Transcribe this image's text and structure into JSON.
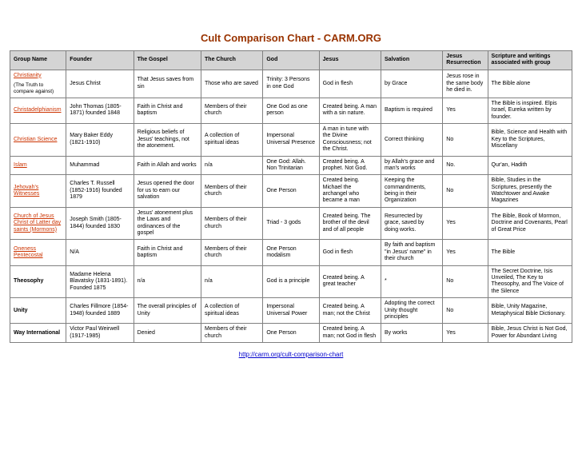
{
  "title": "Cult Comparison Chart - CARM.ORG",
  "footer_url": "http://carm.org/cult-comparison-chart",
  "columns": [
    "Group Name",
    "Founder",
    "The Gospel",
    "The Church",
    "God",
    "Jesus",
    "Salvation",
    "Jesus Resurrection",
    "Scripture and writings associated with group"
  ],
  "rows": [
    {
      "group": "Christianity",
      "group_sub": "(The Truth to compare against)",
      "founder": "Jesus Christ",
      "gospel": "That Jesus saves from sin",
      "church": "Those who are saved",
      "god": "Trinity: 3 Persons in one God",
      "jesus": "God in flesh",
      "salvation": "by Grace",
      "resurrection": "Jesus rose in the same body he died in.",
      "scripture": "The Bible alone"
    },
    {
      "group": "Christadelphianism",
      "group_sub": "",
      "founder": "John Thomas (1805-1871) founded 1848",
      "gospel": "Faith in Christ and baptism",
      "church": "Members of their church",
      "god": "One God as one person",
      "jesus": "Created being. A man with a sin nature.",
      "salvation": "Baptism is required",
      "resurrection": "Yes",
      "scripture": "The Bible is inspired. Elpis Israel, Eureka written by founder."
    },
    {
      "group": "Christian Science",
      "group_sub": "",
      "founder": "Mary Baker Eddy (1821-1910)",
      "gospel": "Religious beliefs of Jesus' teachings, not the atonement.",
      "church": "A collection of spiritual ideas",
      "god": "Impersonal Universal Presence",
      "jesus": "A man in tune with the Divine Consciousness; not the Christ.",
      "salvation": "Correct thinking",
      "resurrection": "No",
      "scripture": "Bible, Science and Health with Key to the Scriptures, Miscellany"
    },
    {
      "group": "Islam",
      "group_sub": "",
      "founder": "Muhammad",
      "gospel": "Faith in Allah and works",
      "church": "n/a",
      "god": "One God: Allah. Non Trinitarian",
      "jesus": "Created being. A prophet. Not God.",
      "salvation": "by Allah's grace and man's works",
      "resurrection": "No.",
      "scripture": "Qur'an, Hadith"
    },
    {
      "group": "Jehovah's Witnesses",
      "group_sub": "",
      "founder": "Charles T. Russell (1852-1916) founded 1879",
      "gospel": "Jesus opened the door for us to earn our salvation",
      "church": "Members of their church",
      "god": "One Person",
      "jesus": "Created being. Michael the archangel who became a man",
      "salvation": "Keeping the commandments, being in their Organization",
      "resurrection": "No",
      "scripture": "Bible, Studies in the Scriptures, presently the Watchtower and Awake Magazines"
    },
    {
      "group": "Church of Jesus Christ of Latter day saints (Mormons)",
      "group_sub": "",
      "founder": "Joseph Smith (1805-1844) founded 1830",
      "gospel": "Jesus' atonement plus the Laws and ordinances of the gospel",
      "church": "Members of their church",
      "god": "Triad - 3 gods",
      "jesus": "Created being. The brother of the devil and of all people",
      "salvation": "Resurrected by grace, saved by doing works.",
      "resurrection": "Yes",
      "scripture": "The Bible, Book of Mormon, Doctrine and Covenants, Pearl of Great Price"
    },
    {
      "group": "Oneness Pentecostal",
      "group_sub": "",
      "founder": "N/A",
      "gospel": "Faith in Christ and baptism",
      "church": "Members of their church",
      "god": "One Person modalism",
      "jesus": "God in flesh",
      "salvation": "By faith and baptism \"in Jesus' name\" in their church",
      "resurrection": "Yes",
      "scripture": "The Bible"
    },
    {
      "group": "Theosophy",
      "group_sub": "",
      "founder": "Madame Helena Blavatsky (1831-1891). Founded 1875",
      "gospel": "n/a",
      "church": "n/a",
      "god": "God is a principle",
      "jesus": "Created being. A great teacher",
      "salvation": "*",
      "resurrection": "No",
      "scripture": "The Secret Doctrine, Isis Unveiled, The Key to Theosophy, and The Voice of the Silence"
    },
    {
      "group": "Unity",
      "group_sub": "",
      "founder": "Charles Fillmore (1854-1948) founded 1889",
      "gospel": "The overall principles of Unity",
      "church": "A collection of spiritual ideas",
      "god": "Impersonal Universal Power",
      "jesus": "Created being. A man; not the Christ",
      "salvation": "Adopting the correct Unity thought principles",
      "resurrection": "No",
      "scripture": "Bible, Unity Magazine, Metaphysical Bible Dictionary."
    },
    {
      "group": "Way International",
      "group_sub": "",
      "founder": "Victor Paul Weirwell (1917-1985)",
      "gospel": "Denied",
      "church": "Members of their church",
      "god": "One Person",
      "jesus": "Created being. A man; not God in flesh",
      "salvation": "By works",
      "resurrection": "Yes",
      "scripture": "Bible, Jesus Christ is Not God, Power for Abundant Living"
    }
  ],
  "link_color": "#cc3300",
  "header_bg": "#d4d4d4",
  "border_color": "#808080"
}
